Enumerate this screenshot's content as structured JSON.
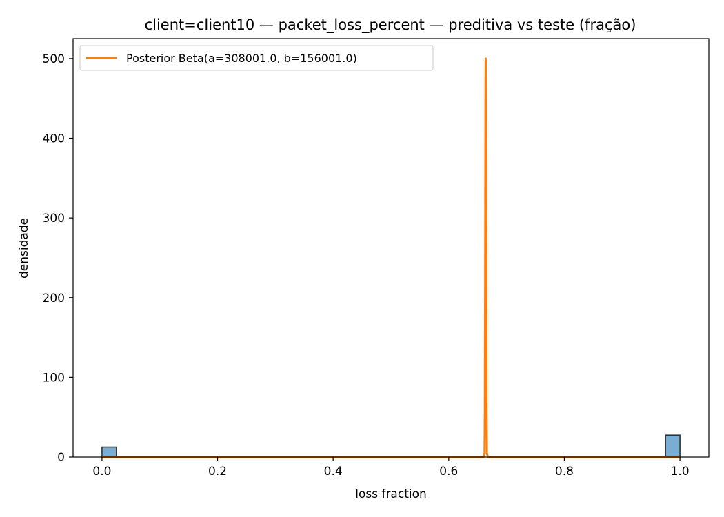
{
  "chart_data": {
    "type": "histogram+line",
    "title": "client=client10 — packet_loss_percent — preditiva vs teste (fração)",
    "xlabel": "loss fraction",
    "ylabel": "densidade",
    "xlim": [
      -0.05,
      1.05
    ],
    "ylim": [
      0,
      525
    ],
    "xticks": [
      0.0,
      0.2,
      0.4,
      0.6,
      0.8,
      1.0
    ],
    "xtick_labels": [
      "0.0",
      "0.2",
      "0.4",
      "0.6",
      "0.8",
      "1.0"
    ],
    "yticks": [
      0,
      100,
      200,
      300,
      400,
      500
    ],
    "ytick_labels": [
      "0",
      "100",
      "200",
      "300",
      "400",
      "500"
    ],
    "grid": false,
    "legend_position": "top-left",
    "histogram": {
      "bin_width": 0.025,
      "color": "#1f77b4",
      "edge_color": "#333333",
      "bars": [
        {
          "x0": 0.0,
          "x1": 0.025,
          "density": 12.5
        },
        {
          "x0": 0.975,
          "x1": 1.0,
          "density": 27.5
        }
      ]
    },
    "series": [
      {
        "name": "Posterior Beta(a=308001.0, b=156001.0)",
        "color": "#ff7f0e",
        "a": 308001.0,
        "b": 156001.0,
        "x": [
          0.0,
          0.66,
          0.662,
          0.6625,
          0.663,
          0.6632,
          0.6634,
          0.6636,
          0.6638,
          0.664,
          0.6642,
          0.6644,
          0.6646,
          0.6648,
          0.665,
          0.6655,
          0.666,
          0.668,
          1.0
        ],
        "y": [
          0,
          0,
          5,
          60,
          210,
          293,
          375,
          440,
          482,
          500,
          482,
          440,
          375,
          293,
          210,
          60,
          5,
          0,
          0
        ]
      }
    ]
  }
}
